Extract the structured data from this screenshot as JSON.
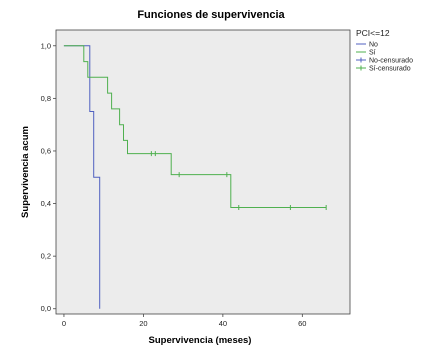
{
  "chart_data": {
    "type": "line",
    "title": "Funciones de supervivencia",
    "xlabel": "Supervivencia (meses)",
    "ylabel": "Supervivencia acum",
    "xlim": [
      -2,
      72
    ],
    "ylim": [
      -0.02,
      1.06
    ],
    "x_ticks": [
      0,
      20,
      40,
      60
    ],
    "x_tick_labels": [
      "0",
      "20",
      "40",
      "60"
    ],
    "y_ticks": [
      0.0,
      0.2,
      0.4,
      0.6,
      0.8,
      1.0
    ],
    "y_tick_labels": [
      "0,0",
      "0,2",
      "0,4",
      "0,6",
      "0,8",
      "1,0"
    ],
    "grid": false,
    "legend_position": "top-right",
    "legend_title": "PCI<=12",
    "colors": {
      "no": "#5060c0",
      "si": "#4fb04f",
      "plot_bg": "#ececec"
    },
    "legend": [
      {
        "label": "No",
        "color": "#5060c0",
        "marker": "line"
      },
      {
        "label": "Sí",
        "color": "#4fb04f",
        "marker": "line"
      },
      {
        "label": "No-censurado",
        "color": "#5060c0",
        "marker": "cross"
      },
      {
        "label": "Sí-censurado",
        "color": "#4fb04f",
        "marker": "cross"
      }
    ],
    "series": [
      {
        "color": "#5060c0",
        "steps": [
          [
            0,
            1.0
          ],
          [
            6.5,
            1.0
          ],
          [
            6.5,
            0.75
          ],
          [
            7.5,
            0.75
          ],
          [
            7.5,
            0.5
          ],
          [
            9,
            0.5
          ],
          [
            9,
            0.0
          ]
        ],
        "censored": []
      },
      {
        "color": "#4fb04f",
        "steps": [
          [
            0,
            1.0
          ],
          [
            5,
            1.0
          ],
          [
            5,
            0.94
          ],
          [
            6,
            0.94
          ],
          [
            6,
            0.88
          ],
          [
            11,
            0.88
          ],
          [
            11,
            0.82
          ],
          [
            12,
            0.82
          ],
          [
            12,
            0.76
          ],
          [
            14,
            0.76
          ],
          [
            14,
            0.7
          ],
          [
            15,
            0.7
          ],
          [
            15,
            0.64
          ],
          [
            16,
            0.64
          ],
          [
            16,
            0.59
          ],
          [
            27,
            0.59
          ],
          [
            27,
            0.51
          ],
          [
            42,
            0.51
          ],
          [
            42,
            0.385
          ],
          [
            66,
            0.385
          ]
        ],
        "censored": [
          [
            22,
            0.59
          ],
          [
            23,
            0.59
          ],
          [
            29,
            0.51
          ],
          [
            41,
            0.51
          ],
          [
            44,
            0.385
          ],
          [
            57,
            0.385
          ],
          [
            66,
            0.385
          ]
        ]
      }
    ]
  }
}
